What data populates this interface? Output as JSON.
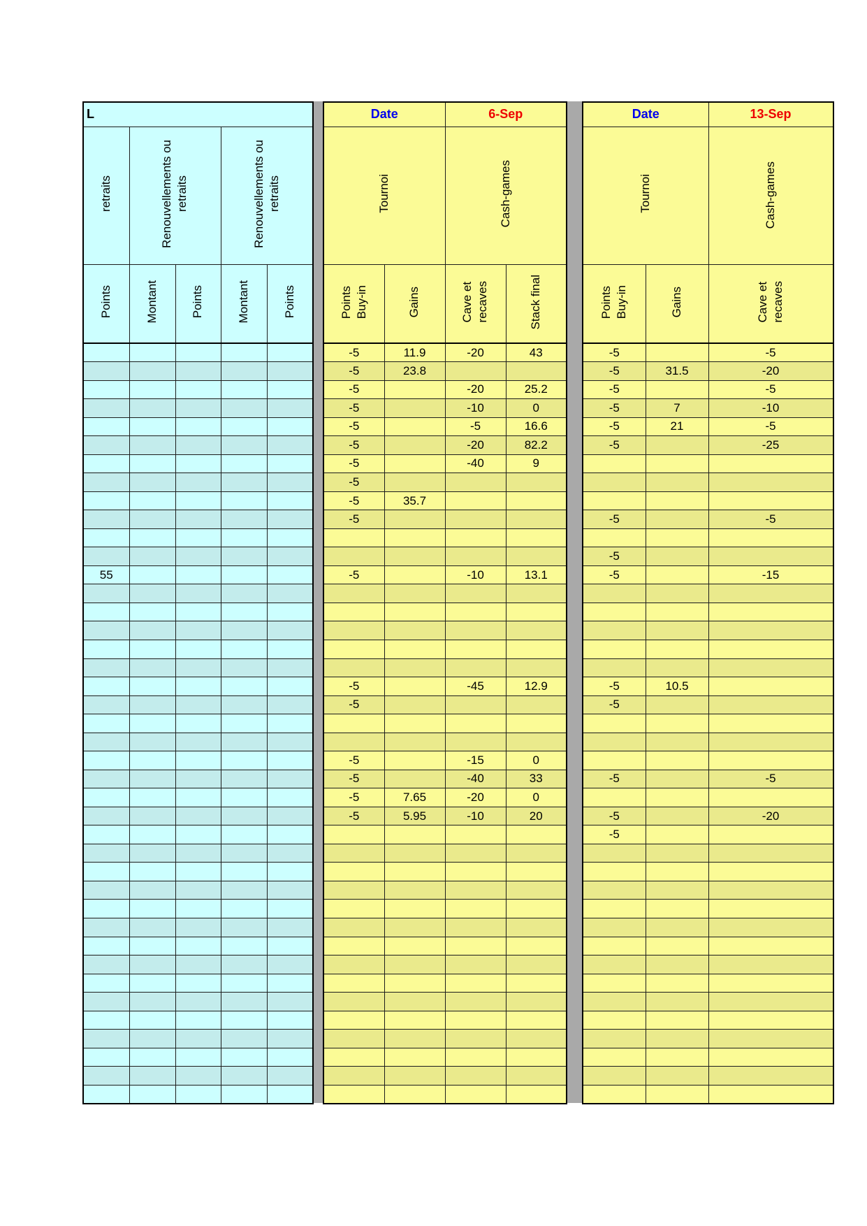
{
  "colors": {
    "cyan_light": "#ccffff",
    "cyan_dark": "#c3ecec",
    "yellow_light": "#fbfb96",
    "yellow_dark": "#eaea8c",
    "gray_strip": "#a9a9a9",
    "date_blue": "#0000ee",
    "date_red": "#ee0000"
  },
  "left_table": {
    "corner_label": "L",
    "groups": [
      "retraits",
      "Renouvellements ou\nretraits",
      "Renouvellements ou\nretraits"
    ],
    "columns": [
      "Points",
      "Montant",
      "Points",
      "Montant",
      "Points"
    ],
    "rows": [
      [
        "",
        "",
        "",
        "",
        ""
      ],
      [
        "",
        "",
        "",
        "",
        ""
      ],
      [
        "",
        "",
        "",
        "",
        ""
      ],
      [
        "",
        "",
        "",
        "",
        ""
      ],
      [
        "",
        "",
        "",
        "",
        ""
      ],
      [
        "",
        "",
        "",
        "",
        ""
      ],
      [
        "",
        "",
        "",
        "",
        ""
      ],
      [
        "",
        "",
        "",
        "",
        ""
      ],
      [
        "",
        "",
        "",
        "",
        ""
      ],
      [
        "",
        "",
        "",
        "",
        ""
      ],
      [
        "",
        "",
        "",
        "",
        ""
      ],
      [
        "",
        "",
        "",
        "",
        ""
      ],
      [
        "55",
        "",
        "",
        "",
        ""
      ],
      [
        "",
        "",
        "",
        "",
        ""
      ],
      [
        "",
        "",
        "",
        "",
        ""
      ],
      [
        "",
        "",
        "",
        "",
        ""
      ],
      [
        "",
        "",
        "",
        "",
        ""
      ],
      [
        "",
        "",
        "",
        "",
        ""
      ],
      [
        "",
        "",
        "",
        "",
        ""
      ],
      [
        "",
        "",
        "",
        "",
        ""
      ],
      [
        "",
        "",
        "",
        "",
        ""
      ],
      [
        "",
        "",
        "",
        "",
        ""
      ],
      [
        "",
        "",
        "",
        "",
        ""
      ],
      [
        "",
        "",
        "",
        "",
        ""
      ],
      [
        "",
        "",
        "",
        "",
        ""
      ],
      [
        "",
        "",
        "",
        "",
        ""
      ],
      [
        "",
        "",
        "",
        "",
        ""
      ],
      [
        "",
        "",
        "",
        "",
        ""
      ],
      [
        "",
        "",
        "",
        "",
        ""
      ],
      [
        "",
        "",
        "",
        "",
        ""
      ],
      [
        "",
        "",
        "",
        "",
        ""
      ],
      [
        "",
        "",
        "",
        "",
        ""
      ],
      [
        "",
        "",
        "",
        "",
        ""
      ],
      [
        "",
        "",
        "",
        "",
        ""
      ],
      [
        "",
        "",
        "",
        "",
        ""
      ],
      [
        "",
        "",
        "",
        "",
        ""
      ],
      [
        "",
        "",
        "",
        "",
        ""
      ],
      [
        "",
        "",
        "",
        "",
        ""
      ],
      [
        "",
        "",
        "",
        "",
        ""
      ],
      [
        "",
        "",
        "",
        "",
        ""
      ],
      [
        "",
        "",
        "",
        "",
        ""
      ]
    ]
  },
  "mid_table": {
    "date_label": "Date",
    "date_value": "6-Sep",
    "groups": [
      "Tournoi",
      "Cash-games"
    ],
    "columns": [
      "Points\nBuy-in",
      "Gains",
      "Cave et\nrecaves",
      "Stack final"
    ],
    "rows": [
      [
        "-5",
        "11.9",
        "-20",
        "43"
      ],
      [
        "-5",
        "23.8",
        "",
        ""
      ],
      [
        "-5",
        "",
        "-20",
        "25.2"
      ],
      [
        "-5",
        "",
        "-10",
        "0"
      ],
      [
        "-5",
        "",
        "-5",
        "16.6"
      ],
      [
        "-5",
        "",
        "-20",
        "82.2"
      ],
      [
        "-5",
        "",
        "-40",
        "9"
      ],
      [
        "-5",
        "",
        "",
        ""
      ],
      [
        "-5",
        "35.7",
        "",
        ""
      ],
      [
        "-5",
        "",
        "",
        ""
      ],
      [
        "",
        "",
        "",
        ""
      ],
      [
        "",
        "",
        "",
        ""
      ],
      [
        "-5",
        "",
        "-10",
        "13.1"
      ],
      [
        "",
        "",
        "",
        ""
      ],
      [
        "",
        "",
        "",
        ""
      ],
      [
        "",
        "",
        "",
        ""
      ],
      [
        "",
        "",
        "",
        ""
      ],
      [
        "",
        "",
        "",
        ""
      ],
      [
        "-5",
        "",
        "-45",
        "12.9"
      ],
      [
        "-5",
        "",
        "",
        ""
      ],
      [
        "",
        "",
        "",
        ""
      ],
      [
        "",
        "",
        "",
        ""
      ],
      [
        "-5",
        "",
        "-15",
        "0"
      ],
      [
        "-5",
        "",
        "-40",
        "33"
      ],
      [
        "-5",
        "7.65",
        "-20",
        "0"
      ],
      [
        "-5",
        "5.95",
        "-10",
        "20"
      ],
      [
        "",
        "",
        "",
        ""
      ],
      [
        "",
        "",
        "",
        ""
      ],
      [
        "",
        "",
        "",
        ""
      ],
      [
        "",
        "",
        "",
        ""
      ],
      [
        "",
        "",
        "",
        ""
      ],
      [
        "",
        "",
        "",
        ""
      ],
      [
        "",
        "",
        "",
        ""
      ],
      [
        "",
        "",
        "",
        ""
      ],
      [
        "",
        "",
        "",
        ""
      ],
      [
        "",
        "",
        "",
        ""
      ],
      [
        "",
        "",
        "",
        ""
      ],
      [
        "",
        "",
        "",
        ""
      ],
      [
        "",
        "",
        "",
        ""
      ],
      [
        "",
        "",
        "",
        ""
      ],
      [
        "",
        "",
        "",
        ""
      ]
    ]
  },
  "right_table": {
    "date_label": "Date",
    "date_value": "13-Sep",
    "groups": [
      "Tournoi",
      "Cash-games"
    ],
    "columns": [
      "Points\nBuy-in",
      "Gains",
      "Cave et\nrecaves"
    ],
    "rows": [
      [
        "-5",
        "",
        "-5"
      ],
      [
        "-5",
        "31.5",
        "-20"
      ],
      [
        "-5",
        "",
        "-5"
      ],
      [
        "-5",
        "7",
        "-10"
      ],
      [
        "-5",
        "21",
        "-5"
      ],
      [
        "-5",
        "",
        "-25"
      ],
      [
        "",
        "",
        ""
      ],
      [
        "",
        "",
        ""
      ],
      [
        "",
        "",
        ""
      ],
      [
        "-5",
        "",
        "-5"
      ],
      [
        "",
        "",
        ""
      ],
      [
        "-5",
        "",
        ""
      ],
      [
        "-5",
        "",
        "-15"
      ],
      [
        "",
        "",
        ""
      ],
      [
        "",
        "",
        ""
      ],
      [
        "",
        "",
        ""
      ],
      [
        "",
        "",
        ""
      ],
      [
        "",
        "",
        ""
      ],
      [
        "-5",
        "10.5",
        ""
      ],
      [
        "-5",
        "",
        ""
      ],
      [
        "",
        "",
        ""
      ],
      [
        "",
        "",
        ""
      ],
      [
        "",
        "",
        ""
      ],
      [
        "-5",
        "",
        "-5"
      ],
      [
        "",
        "",
        ""
      ],
      [
        "-5",
        "",
        "-20"
      ],
      [
        "-5",
        "",
        ""
      ],
      [
        "",
        "",
        ""
      ],
      [
        "",
        "",
        ""
      ],
      [
        "",
        "",
        ""
      ],
      [
        "",
        "",
        ""
      ],
      [
        "",
        "",
        ""
      ],
      [
        "",
        "",
        ""
      ],
      [
        "",
        "",
        ""
      ],
      [
        "",
        "",
        ""
      ],
      [
        "",
        "",
        ""
      ],
      [
        "",
        "",
        ""
      ],
      [
        "",
        "",
        ""
      ],
      [
        "",
        "",
        ""
      ],
      [
        "",
        "",
        ""
      ],
      [
        "",
        "",
        ""
      ]
    ]
  }
}
